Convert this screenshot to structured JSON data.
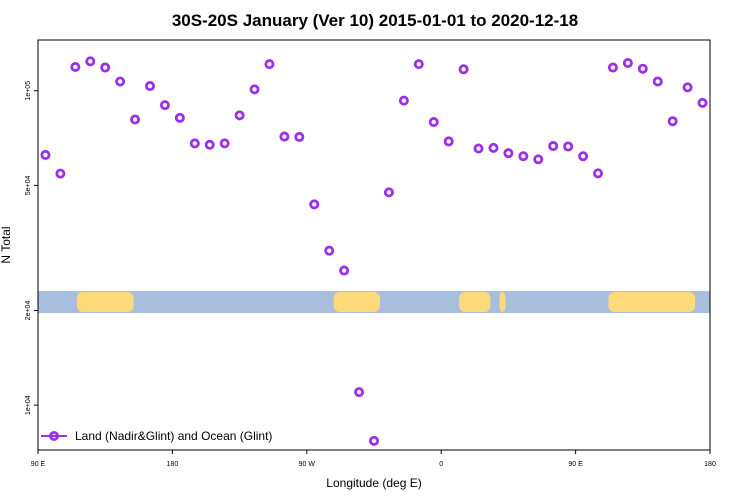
{
  "chart_data": {
    "type": "scatter",
    "title": "30S-20S January (Ver 10)   2015-01-01 to 2020-12-18",
    "xlabel": "Longitude (deg E)",
    "ylabel": "N Total",
    "y_scale": "log",
    "xlim": [
      90,
      540
    ],
    "ylim": [
      7200,
      145000
    ],
    "x_ticks": [
      {
        "value": 90,
        "label": "90 E"
      },
      {
        "value": 180,
        "label": "180"
      },
      {
        "value": 270,
        "label": "90 W"
      },
      {
        "value": 360,
        "label": "0"
      },
      {
        "value": 450,
        "label": "90 E"
      },
      {
        "value": 540,
        "label": "180"
      }
    ],
    "y_ticks": [
      {
        "value": 10000,
        "label": "1e+04"
      },
      {
        "value": 20000,
        "label": "2e+04"
      },
      {
        "value": 50000,
        "label": "5e+04"
      },
      {
        "value": 100000,
        "label": "1e+05"
      }
    ],
    "land_bands": [
      [
        116,
        154
      ],
      [
        288,
        319
      ],
      [
        372,
        393
      ],
      [
        399,
        403
      ],
      [
        472,
        530
      ]
    ],
    "land_band_label": "continent outline at 30S-20S",
    "land_color": "#FFD97A",
    "ocean_color": "#A8BEDD",
    "series": [
      {
        "name": "Land (Nadir&Glint) and Ocean (Glint)",
        "color": "#9B30E8",
        "marker": "open-circle",
        "x": [
          95,
          105,
          115,
          125,
          135,
          145,
          155,
          165,
          175,
          185,
          195,
          205,
          215,
          225,
          235,
          245,
          255,
          265,
          275,
          285,
          295,
          305,
          315,
          325,
          335,
          345,
          355,
          365,
          375,
          385,
          395,
          405,
          415,
          425,
          435,
          445,
          455,
          465,
          475,
          485,
          495,
          505,
          515,
          525,
          535
        ],
        "y": [
          62500,
          54500,
          119000,
          124000,
          118500,
          107000,
          81000,
          103500,
          90000,
          82000,
          68000,
          67300,
          68000,
          83500,
          101000,
          121500,
          71500,
          71300,
          43500,
          31000,
          26800,
          11000,
          7700,
          47500,
          93000,
          121500,
          79500,
          69000,
          117000,
          65500,
          65800,
          63300,
          61900,
          60500,
          66700,
          66500,
          61900,
          54600,
          118500,
          122500,
          117500,
          107000,
          80000,
          102500,
          91500
        ]
      }
    ]
  }
}
